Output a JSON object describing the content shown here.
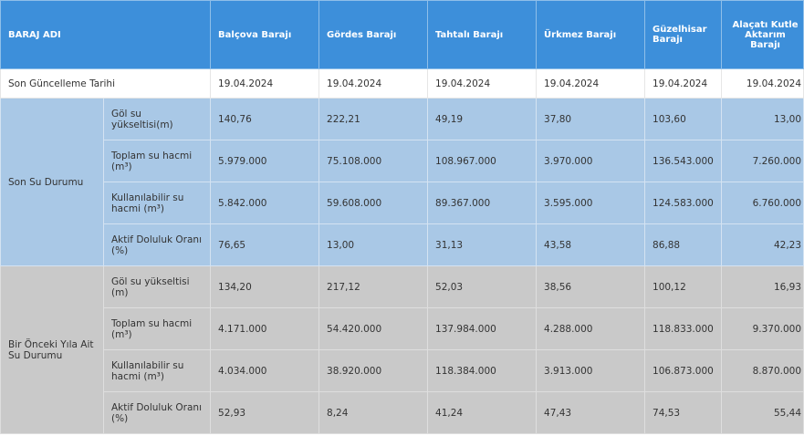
{
  "table": {
    "header": [
      "BARAJ ADI",
      "Balçova Barajı",
      "Gördes Barajı",
      "Tahtalı Barajı",
      "Ürkmez Barajı",
      "Güzelhisar Barajı",
      "Alaçatı Kutle Aktarım Barajı"
    ],
    "update_row": {
      "label": "Son Güncelleme Tarihi",
      "values": [
        "19.04.2024",
        "19.04.2024",
        "19.04.2024",
        "19.04.2024",
        "19.04.2024",
        "19.04.2024"
      ]
    },
    "groups": [
      {
        "label": "Son Su Durumu",
        "rows": [
          {
            "label": "Göl su yükseltisi(m)",
            "values": [
              "140,76",
              "222,21",
              "49,19",
              "37,80",
              "103,60",
              "13,00"
            ]
          },
          {
            "label": "Toplam su hacmi (m³)",
            "values": [
              "5.979.000",
              "75.108.000",
              "108.967.000",
              "3.970.000",
              "136.543.000",
              "7.260.000"
            ]
          },
          {
            "label": "Kullanılabilir su hacmi (m³)",
            "values": [
              "5.842.000",
              "59.608.000",
              "89.367.000",
              "3.595.000",
              "124.583.000",
              "6.760.000"
            ]
          },
          {
            "label": "Aktif Doluluk Oranı (%)",
            "values": [
              "76,65",
              "13,00",
              "31,13",
              "43,58",
              "86,88",
              "42,23"
            ]
          }
        ]
      },
      {
        "label": "Bir Önceki Yıla Ait Su Durumu",
        "rows": [
          {
            "label": "Göl su yükseltisi (m)",
            "values": [
              "134,20",
              "217,12",
              "52,03",
              "38,56",
              "100,12",
              "16,93"
            ]
          },
          {
            "label": "Toplam su hacmi (m³)",
            "values": [
              "4.171.000",
              "54.420.000",
              "137.984.000",
              "4.288.000",
              "118.833.000",
              "9.370.000"
            ]
          },
          {
            "label": "Kullanılabilir su hacmi (m³)",
            "values": [
              "4.034.000",
              "38.920.000",
              "118.384.000",
              "3.913.000",
              "106.873.000",
              "8.870.000"
            ]
          },
          {
            "label": "Aktif Doluluk Oranı (%)",
            "values": [
              "52,93",
              "8,24",
              "41,24",
              "47,43",
              "74,53",
              "55,44"
            ]
          }
        ]
      }
    ]
  }
}
